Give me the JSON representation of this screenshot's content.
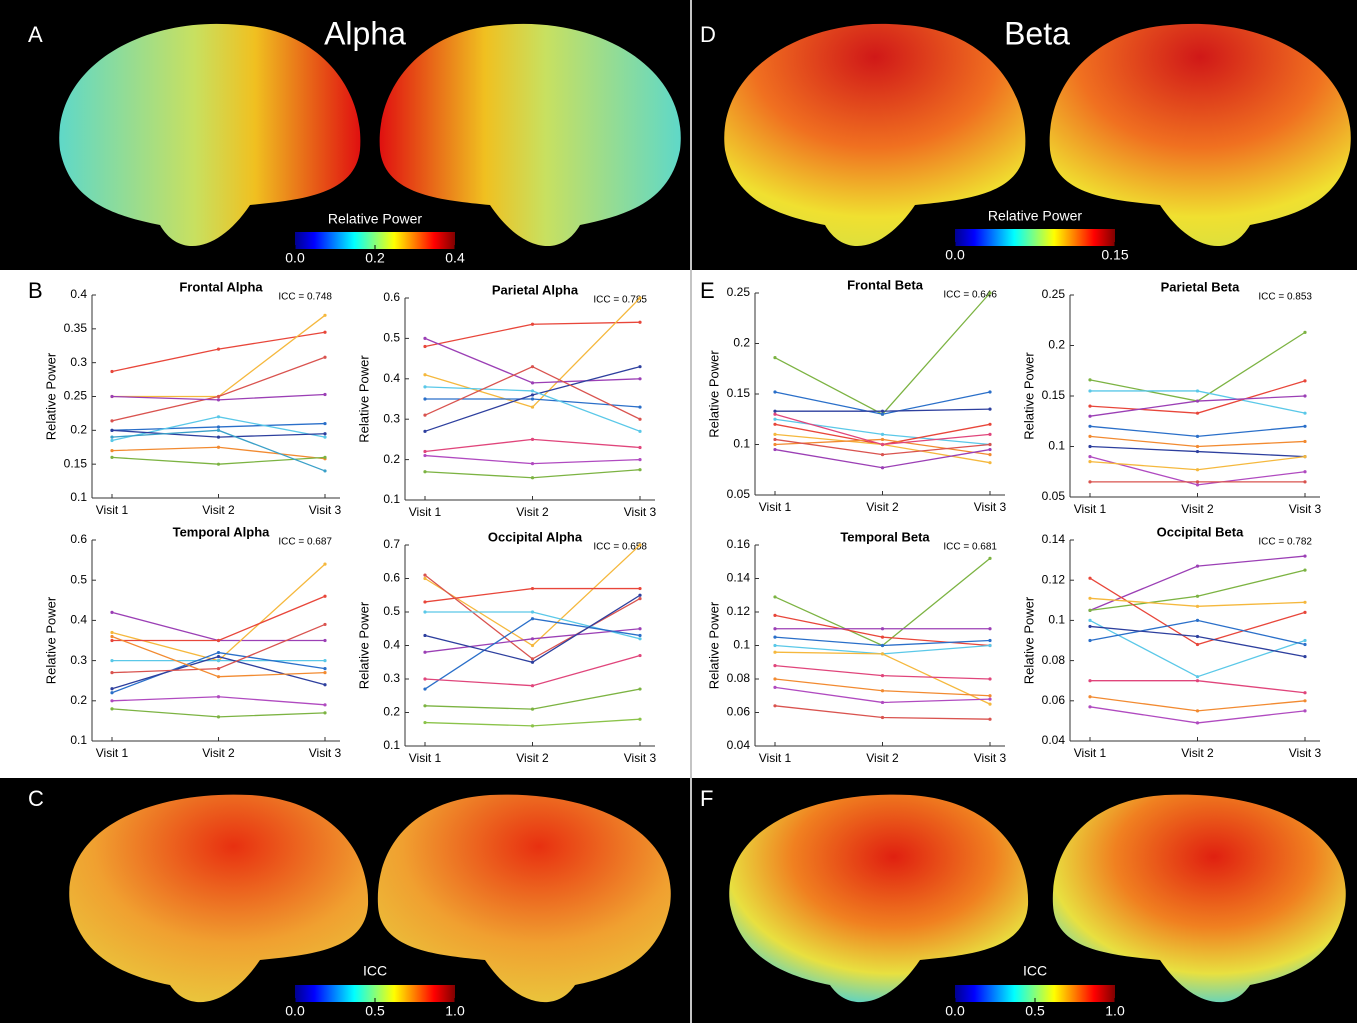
{
  "figure": {
    "panel_labels": [
      "A",
      "B",
      "C",
      "D",
      "E",
      "F"
    ],
    "headings": [
      "Alpha",
      "Beta"
    ],
    "colorbars": [
      {
        "title": "Relative Power",
        "lim": [
          0,
          0.4
        ],
        "ticks": [
          {
            "value": 0,
            "label": "0.0"
          },
          0.2,
          0.4
        ]
      },
      {
        "title": "Relative Power",
        "lim": [
          0,
          0.15
        ],
        "ticks": [
          {
            "value": 0,
            "label": "0.0"
          },
          0.15
        ]
      },
      {
        "title": "ICC",
        "lim": [
          0,
          1
        ],
        "ticks": [
          {
            "value": 0,
            "label": "0.0"
          },
          0.5,
          {
            "value": 1,
            "label": "1.0"
          }
        ]
      },
      {
        "title": "ICC",
        "lim": [
          0,
          1
        ],
        "ticks": [
          {
            "value": 0,
            "label": "0.0"
          },
          0.5,
          {
            "value": 1,
            "label": "1.0"
          }
        ]
      }
    ]
  },
  "chart_data": [
    {
      "type": "line",
      "title": "Frontal Alpha",
      "annotation": "ICC = 0.748",
      "y_label": "Relative Power",
      "categories": [
        "Visit 1",
        "Visit 2",
        "Visit 3"
      ],
      "ylim": [
        0.1,
        0.4
      ],
      "yticks": [
        0.1,
        0.15,
        0.2,
        0.25,
        0.3,
        0.35,
        0.4
      ],
      "series": [
        {
          "color": "#e8463a",
          "values": [
            0.287,
            0.32,
            0.345
          ]
        },
        {
          "color": "#f5b83d",
          "values": [
            0.25,
            0.25,
            0.37
          ]
        },
        {
          "color": "#d9534f",
          "values": [
            0.214,
            0.25,
            0.308
          ]
        },
        {
          "color": "#9b3fb5",
          "values": [
            0.25,
            0.245,
            0.253
          ]
        },
        {
          "color": "#2a6fc9",
          "values": [
            0.2,
            0.205,
            0.21
          ]
        },
        {
          "color": "#5ac8e8",
          "values": [
            0.185,
            0.22,
            0.19
          ]
        },
        {
          "color": "#f28a30",
          "values": [
            0.17,
            0.175,
            0.158
          ]
        },
        {
          "color": "#7cb342",
          "values": [
            0.16,
            0.15,
            0.16
          ]
        },
        {
          "color": "#2d3f9e",
          "values": [
            0.2,
            0.19,
            0.195
          ]
        },
        {
          "color": "#3aa0c8",
          "values": [
            0.19,
            0.2,
            0.14
          ]
        }
      ]
    },
    {
      "type": "line",
      "title": "Parietal Alpha",
      "annotation": "ICC = 0.785",
      "y_label": "Relative Power",
      "categories": [
        "Visit 1",
        "Visit 2",
        "Visit 3"
      ],
      "ylim": [
        0.1,
        0.6
      ],
      "yticks": [
        0.1,
        0.2,
        0.3,
        0.4,
        0.5,
        0.6
      ],
      "series": [
        {
          "color": "#e8463a",
          "values": [
            0.48,
            0.535,
            0.54
          ]
        },
        {
          "color": "#f5b83d",
          "values": [
            0.41,
            0.33,
            0.6
          ]
        },
        {
          "color": "#9b3fb5",
          "values": [
            0.5,
            0.39,
            0.4
          ]
        },
        {
          "color": "#2a6fc9",
          "values": [
            0.35,
            0.35,
            0.33
          ]
        },
        {
          "color": "#2d3f9e",
          "values": [
            0.27,
            0.36,
            0.43
          ]
        },
        {
          "color": "#5ac8e8",
          "values": [
            0.38,
            0.37,
            0.27
          ]
        },
        {
          "color": "#d9534f",
          "values": [
            0.31,
            0.43,
            0.3
          ]
        },
        {
          "color": "#b04ac0",
          "values": [
            0.21,
            0.19,
            0.2
          ]
        },
        {
          "color": "#7cb342",
          "values": [
            0.17,
            0.155,
            0.175
          ]
        },
        {
          "color": "#e0457b",
          "values": [
            0.22,
            0.25,
            0.23
          ]
        }
      ]
    },
    {
      "type": "line",
      "title": "Temporal Alpha",
      "annotation": "ICC = 0.687",
      "y_label": "Relative Power",
      "categories": [
        "Visit 1",
        "Visit 2",
        "Visit 3"
      ],
      "ylim": [
        0.1,
        0.6
      ],
      "yticks": [
        0.1,
        0.2,
        0.3,
        0.4,
        0.5,
        0.6
      ],
      "series": [
        {
          "color": "#9b3fb5",
          "values": [
            0.42,
            0.35,
            0.35
          ]
        },
        {
          "color": "#f5b83d",
          "values": [
            0.37,
            0.3,
            0.54
          ]
        },
        {
          "color": "#e8463a",
          "values": [
            0.35,
            0.35,
            0.46
          ]
        },
        {
          "color": "#5ac8e8",
          "values": [
            0.3,
            0.3,
            0.3
          ]
        },
        {
          "color": "#2a6fc9",
          "values": [
            0.22,
            0.32,
            0.28
          ]
        },
        {
          "color": "#2d3f9e",
          "values": [
            0.23,
            0.31,
            0.24
          ]
        },
        {
          "color": "#d9534f",
          "values": [
            0.27,
            0.28,
            0.39
          ]
        },
        {
          "color": "#7cb342",
          "values": [
            0.18,
            0.16,
            0.17
          ]
        },
        {
          "color": "#b04ac0",
          "values": [
            0.2,
            0.21,
            0.19
          ]
        },
        {
          "color": "#f28a30",
          "values": [
            0.36,
            0.26,
            0.27
          ]
        }
      ]
    },
    {
      "type": "line",
      "title": "Occipital Alpha",
      "annotation": "ICC = 0.658",
      "y_label": "Relative Power",
      "categories": [
        "Visit 1",
        "Visit 2",
        "Visit 3"
      ],
      "ylim": [
        0.1,
        0.7
      ],
      "yticks": [
        0.1,
        0.2,
        0.3,
        0.4,
        0.5,
        0.6,
        0.7
      ],
      "series": [
        {
          "color": "#f5b83d",
          "values": [
            0.6,
            0.4,
            0.7
          ]
        },
        {
          "color": "#e8463a",
          "values": [
            0.53,
            0.57,
            0.57
          ]
        },
        {
          "color": "#d9534f",
          "values": [
            0.61,
            0.36,
            0.54
          ]
        },
        {
          "color": "#5ac8e8",
          "values": [
            0.5,
            0.5,
            0.42
          ]
        },
        {
          "color": "#9b3fb5",
          "values": [
            0.38,
            0.42,
            0.45
          ]
        },
        {
          "color": "#2a6fc9",
          "values": [
            0.27,
            0.48,
            0.43
          ]
        },
        {
          "color": "#2d3f9e",
          "values": [
            0.43,
            0.35,
            0.55
          ]
        },
        {
          "color": "#e0457b",
          "values": [
            0.3,
            0.28,
            0.37
          ]
        },
        {
          "color": "#7cb342",
          "values": [
            0.22,
            0.21,
            0.27
          ]
        },
        {
          "color": "#8bc34a",
          "values": [
            0.17,
            0.16,
            0.18
          ]
        }
      ]
    },
    {
      "type": "line",
      "title": "Frontal Beta",
      "annotation": "ICC = 0.646",
      "y_label": "Relative Power",
      "categories": [
        "Visit 1",
        "Visit 2",
        "Visit 3"
      ],
      "ylim": [
        0.05,
        0.25
      ],
      "yticks": [
        0.05,
        0.1,
        0.15,
        0.2,
        0.25
      ],
      "series": [
        {
          "color": "#7cb342",
          "values": [
            0.186,
            0.13,
            0.25
          ]
        },
        {
          "color": "#2a6fc9",
          "values": [
            0.152,
            0.13,
            0.152
          ]
        },
        {
          "color": "#2d3f9e",
          "values": [
            0.133,
            0.133,
            0.135
          ]
        },
        {
          "color": "#5ac8e8",
          "values": [
            0.125,
            0.11,
            0.1
          ]
        },
        {
          "color": "#e8463a",
          "values": [
            0.12,
            0.1,
            0.12
          ]
        },
        {
          "color": "#f5b83d",
          "values": [
            0.11,
            0.1,
            0.082
          ]
        },
        {
          "color": "#f28a30",
          "values": [
            0.1,
            0.105,
            0.09
          ]
        },
        {
          "color": "#9b3fb5",
          "values": [
            0.095,
            0.077,
            0.095
          ]
        },
        {
          "color": "#e0457b",
          "values": [
            0.13,
            0.1,
            0.11
          ]
        },
        {
          "color": "#d9534f",
          "values": [
            0.105,
            0.09,
            0.1
          ]
        }
      ]
    },
    {
      "type": "line",
      "title": "Parietal Beta",
      "annotation": "ICC = 0.853",
      "y_label": "Relative Power",
      "categories": [
        "Visit 1",
        "Visit 2",
        "Visit 3"
      ],
      "ylim": [
        0.05,
        0.25
      ],
      "yticks": [
        0.05,
        0.1,
        0.15,
        0.2,
        0.25
      ],
      "series": [
        {
          "color": "#7cb342",
          "values": [
            0.166,
            0.145,
            0.213
          ]
        },
        {
          "color": "#5ac8e8",
          "values": [
            0.155,
            0.155,
            0.133
          ]
        },
        {
          "color": "#e8463a",
          "values": [
            0.14,
            0.133,
            0.165
          ]
        },
        {
          "color": "#9b3fb5",
          "values": [
            0.13,
            0.145,
            0.15
          ]
        },
        {
          "color": "#2a6fc9",
          "values": [
            0.12,
            0.11,
            0.12
          ]
        },
        {
          "color": "#f28a30",
          "values": [
            0.11,
            0.1,
            0.105
          ]
        },
        {
          "color": "#2d3f9e",
          "values": [
            0.1,
            0.095,
            0.09
          ]
        },
        {
          "color": "#b04ac0",
          "values": [
            0.09,
            0.062,
            0.075
          ]
        },
        {
          "color": "#d9534f",
          "values": [
            0.065,
            0.065,
            0.065
          ]
        },
        {
          "color": "#f5b83d",
          "values": [
            0.085,
            0.077,
            0.09
          ]
        }
      ]
    },
    {
      "type": "line",
      "title": "Temporal Beta",
      "annotation": "ICC = 0.681",
      "y_label": "Relative Power",
      "categories": [
        "Visit 1",
        "Visit 2",
        "Visit 3"
      ],
      "ylim": [
        0.04,
        0.16
      ],
      "yticks": [
        0.04,
        0.06,
        0.08,
        0.1,
        0.12,
        0.14,
        0.16
      ],
      "series": [
        {
          "color": "#7cb342",
          "values": [
            0.129,
            0.1,
            0.152
          ]
        },
        {
          "color": "#e8463a",
          "values": [
            0.118,
            0.105,
            0.1
          ]
        },
        {
          "color": "#9b3fb5",
          "values": [
            0.11,
            0.11,
            0.11
          ]
        },
        {
          "color": "#2a6fc9",
          "values": [
            0.105,
            0.1,
            0.103
          ]
        },
        {
          "color": "#5ac8e8",
          "values": [
            0.1,
            0.095,
            0.1
          ]
        },
        {
          "color": "#f5b83d",
          "values": [
            0.096,
            0.095,
            0.065
          ]
        },
        {
          "color": "#e0457b",
          "values": [
            0.088,
            0.082,
            0.08
          ]
        },
        {
          "color": "#f28a30",
          "values": [
            0.08,
            0.073,
            0.07
          ]
        },
        {
          "color": "#b04ac0",
          "values": [
            0.075,
            0.066,
            0.068
          ]
        },
        {
          "color": "#d9534f",
          "values": [
            0.064,
            0.057,
            0.056
          ]
        }
      ]
    },
    {
      "type": "line",
      "title": "Occipital Beta",
      "annotation": "ICC = 0.782",
      "y_label": "Relative Power",
      "categories": [
        "Visit 1",
        "Visit 2",
        "Visit 3"
      ],
      "ylim": [
        0.04,
        0.14
      ],
      "yticks": [
        0.04,
        0.06,
        0.08,
        0.1,
        0.12,
        0.14
      ],
      "series": [
        {
          "color": "#9b3fb5",
          "values": [
            0.105,
            0.127,
            0.132
          ]
        },
        {
          "color": "#7cb342",
          "values": [
            0.105,
            0.112,
            0.125
          ]
        },
        {
          "color": "#e8463a",
          "values": [
            0.121,
            0.088,
            0.104
          ]
        },
        {
          "color": "#f5b83d",
          "values": [
            0.111,
            0.107,
            0.109
          ]
        },
        {
          "color": "#5ac8e8",
          "values": [
            0.1,
            0.072,
            0.09
          ]
        },
        {
          "color": "#2a6fc9",
          "values": [
            0.09,
            0.1,
            0.088
          ]
        },
        {
          "color": "#2d3f9e",
          "values": [
            0.097,
            0.092,
            0.082
          ]
        },
        {
          "color": "#e0457b",
          "values": [
            0.07,
            0.07,
            0.064
          ]
        },
        {
          "color": "#f28a30",
          "values": [
            0.062,
            0.055,
            0.06
          ]
        },
        {
          "color": "#b04ac0",
          "values": [
            0.057,
            0.049,
            0.055
          ]
        }
      ]
    }
  ]
}
